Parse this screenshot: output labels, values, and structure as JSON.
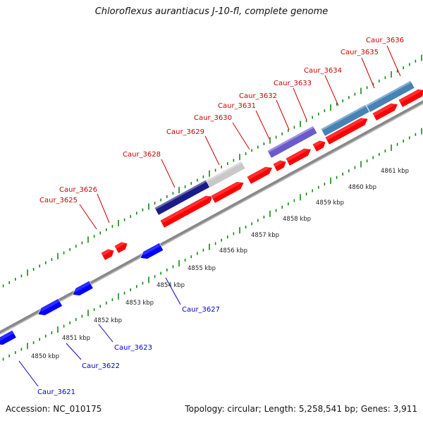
{
  "title": "Chloroflexus aurantiacus J-10-fl, complete genome",
  "footer": {
    "accession": "Accession: NC_010175",
    "stats": "Topology: circular; Length: 5,258,541 bp; Genes: 3,911"
  },
  "colors": {
    "forward_gene": "#ff0000",
    "reverse_gene": "#0000ff",
    "forward_label": "#cc0000",
    "reverse_label": "#0000cc",
    "backbone": "#888888",
    "tick": "#118811",
    "domain_navy": "#1a1a88",
    "domain_gray": "#c8c8c8",
    "domain_purple": "#6a5acd",
    "domain_steelblue": "#4682b4"
  },
  "kbp_labels": [
    "4850 kbp",
    "4851 kbp",
    "4852 kbp",
    "4853 kbp",
    "4854 kbp",
    "4855 kbp",
    "4856 kbp",
    "4857 kbp",
    "4858 kbp",
    "4859 kbp",
    "4860 kbp",
    "4861 kbp"
  ],
  "forward_genes": [
    "Caur_3625",
    "Caur_3626",
    "Caur_3628",
    "Caur_3629",
    "Caur_3630",
    "Caur_3631",
    "Caur_3632",
    "Caur_3633",
    "Caur_3634",
    "Caur_3635",
    "Caur_3636"
  ],
  "reverse_genes": [
    "Caur_3621",
    "Caur_3622",
    "Caur_3623",
    "Caur_3627"
  ]
}
